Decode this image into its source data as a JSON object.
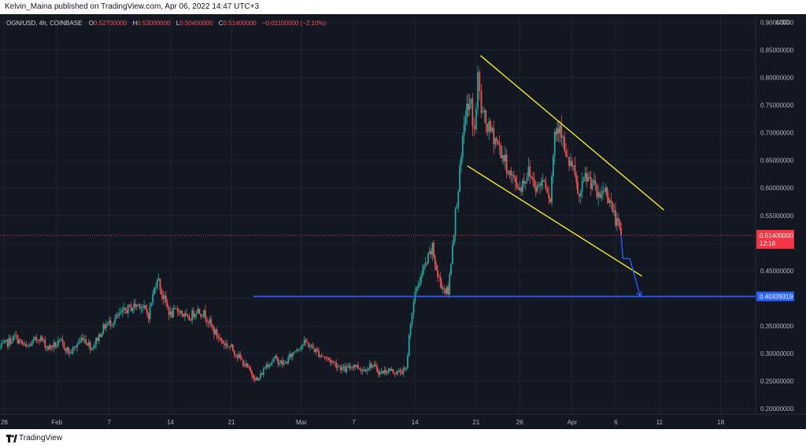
{
  "header": {
    "publisher_line": "Kelvin_Maina published on TradingView.com, Apr 06, 2022 14:47 UTC+3"
  },
  "legend": {
    "symbol": "OGN/USD, 4h, COINBASE",
    "open_label": "O",
    "open": "0.52700000",
    "high_label": "H",
    "high": "0.53000000",
    "low_label": "L",
    "low": "0.50400000",
    "close_label": "C",
    "close": "0.51400000",
    "change": "−0.01100000 (−2.10%)"
  },
  "footer": {
    "brand": "TradingView"
  },
  "colors": {
    "background": "#131722",
    "up": "#26a69a",
    "down": "#ef5350",
    "channel": "#f5eb2a",
    "support": "#2962ff",
    "last_price": "#f23645"
  },
  "chart_data": {
    "type": "candlestick",
    "currency_label": "USD",
    "yticks": [
      "0.90000000",
      "0.85000000",
      "0.80000000",
      "0.75000000",
      "0.70000000",
      "0.65000000",
      "0.60000000",
      "0.55000000",
      "0.50000000",
      "0.45000000",
      "0.40000000",
      "0.35000000",
      "0.30000000",
      "0.25000000",
      "0.20000000"
    ],
    "ylim": [
      0.19,
      0.915
    ],
    "xticks": [
      {
        "label": "26",
        "day": 0
      },
      {
        "label": "Feb",
        "day": 6
      },
      {
        "label": "7",
        "day": 12
      },
      {
        "label": "14",
        "day": 19
      },
      {
        "label": "21",
        "day": 26
      },
      {
        "label": "Mar",
        "day": 34
      },
      {
        "label": "7",
        "day": 40
      },
      {
        "label": "14",
        "day": 47
      },
      {
        "label": "21",
        "day": 54
      },
      {
        "label": "26",
        "day": 59
      },
      {
        "label": "Apr",
        "day": 65
      },
      {
        "label": "6",
        "day": 70
      },
      {
        "label": "11",
        "day": 75
      },
      {
        "label": "18",
        "day": 82
      }
    ],
    "xlim": [
      -0.5,
      86
    ],
    "price_path": [
      [
        -0.5,
        0.31
      ],
      [
        1.2,
        0.33
      ],
      [
        2.5,
        0.31
      ],
      [
        4,
        0.33
      ],
      [
        5,
        0.31
      ],
      [
        6.5,
        0.32
      ],
      [
        7.5,
        0.3
      ],
      [
        9,
        0.33
      ],
      [
        10,
        0.31
      ],
      [
        11.5,
        0.35
      ],
      [
        12.5,
        0.36
      ],
      [
        14,
        0.38
      ],
      [
        15.5,
        0.39
      ],
      [
        16.5,
        0.37
      ],
      [
        17.5,
        0.44
      ],
      [
        18,
        0.41
      ],
      [
        19,
        0.37
      ],
      [
        20,
        0.38
      ],
      [
        21,
        0.36
      ],
      [
        22,
        0.38
      ],
      [
        23,
        0.37
      ],
      [
        24,
        0.34
      ],
      [
        25,
        0.32
      ],
      [
        26,
        0.31
      ],
      [
        27,
        0.29
      ],
      [
        28,
        0.27
      ],
      [
        29,
        0.25
      ],
      [
        30,
        0.28
      ],
      [
        31,
        0.29
      ],
      [
        32,
        0.28
      ],
      [
        33.5,
        0.31
      ],
      [
        34.5,
        0.32
      ],
      [
        36,
        0.3
      ],
      [
        37,
        0.29
      ],
      [
        38,
        0.28
      ],
      [
        39,
        0.27
      ],
      [
        40,
        0.28
      ],
      [
        41,
        0.27
      ],
      [
        42,
        0.28
      ],
      [
        43,
        0.265
      ],
      [
        44,
        0.27
      ],
      [
        45,
        0.265
      ],
      [
        46,
        0.27
      ],
      [
        46.5,
        0.36
      ],
      [
        47.2,
        0.42
      ],
      [
        48.2,
        0.46
      ],
      [
        49,
        0.49
      ],
      [
        49.6,
        0.44
      ],
      [
        50.2,
        0.42
      ],
      [
        50.8,
        0.41
      ],
      [
        51.3,
        0.5
      ],
      [
        51.8,
        0.58
      ],
      [
        52.3,
        0.65
      ],
      [
        52.8,
        0.74
      ],
      [
        53.4,
        0.75
      ],
      [
        53.8,
        0.7
      ],
      [
        54.2,
        0.8
      ],
      [
        54.6,
        0.74
      ],
      [
        55.3,
        0.71
      ],
      [
        56.2,
        0.69
      ],
      [
        57,
        0.66
      ],
      [
        58,
        0.62
      ],
      [
        59,
        0.6
      ],
      [
        60,
        0.63
      ],
      [
        61,
        0.6
      ],
      [
        61.8,
        0.62
      ],
      [
        62.5,
        0.58
      ],
      [
        63,
        0.7
      ],
      [
        63.6,
        0.72
      ],
      [
        64.3,
        0.65
      ],
      [
        65,
        0.64
      ],
      [
        65.8,
        0.58
      ],
      [
        66.5,
        0.62
      ],
      [
        67.3,
        0.61
      ],
      [
        68,
        0.58
      ],
      [
        68.7,
        0.6
      ],
      [
        69.3,
        0.58
      ],
      [
        69.8,
        0.55
      ],
      [
        70.3,
        0.53
      ],
      [
        70.6,
        0.514
      ]
    ],
    "last_price": {
      "value": 0.514,
      "label": "0.51400000",
      "countdown": "12:16"
    },
    "support": {
      "value": 0.40339319,
      "label": "0.40339319",
      "x_start": 28.5,
      "x_end": 86
    },
    "upper_channel": {
      "x1": 54.5,
      "y1": 0.84,
      "x2": 75.5,
      "y2": 0.56
    },
    "lower_channel": {
      "x1": 53.0,
      "y1": 0.64,
      "x2": 73.0,
      "y2": 0.44
    },
    "arrow": [
      [
        70.6,
        0.514
      ],
      [
        70.8,
        0.472
      ],
      [
        71.6,
        0.472
      ],
      [
        72.8,
        0.403
      ]
    ]
  }
}
